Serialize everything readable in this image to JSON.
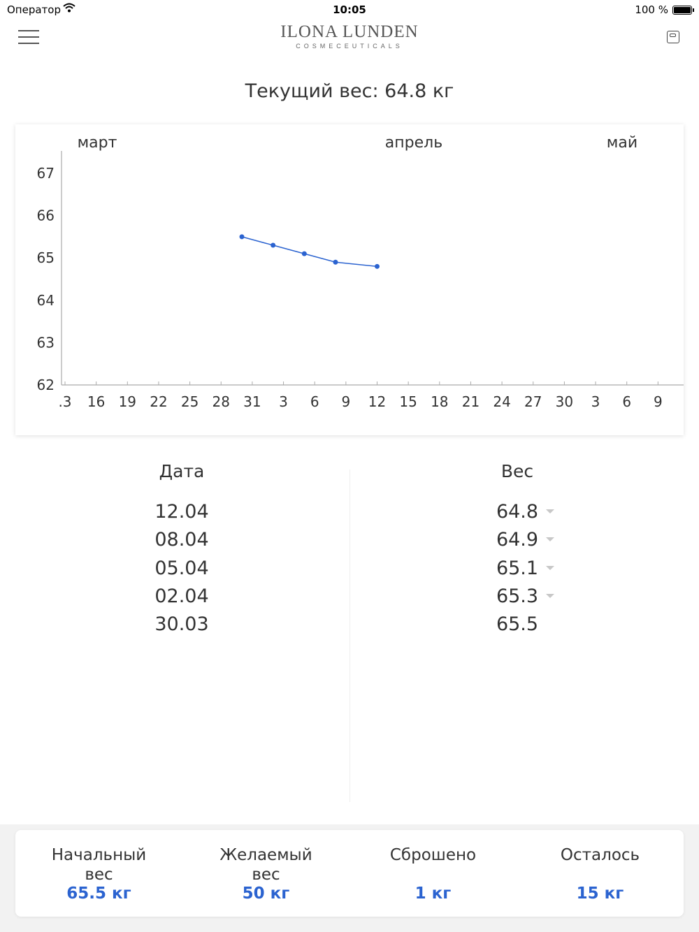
{
  "status_bar": {
    "carrier": "Оператор",
    "time": "10:05",
    "battery": "100 %"
  },
  "header": {
    "brand": "ILONA LUNDEN",
    "brand_sub": "COSMECEUTICALS"
  },
  "current_weight": "Текущий вес: 64.8 кг",
  "chart_data": {
    "type": "line",
    "months": [
      "март",
      "апрель",
      "май"
    ],
    "x_tick_labels": [
      ".3",
      "16",
      "19",
      "22",
      "25",
      "28",
      "31",
      "3",
      "6",
      "9",
      "12",
      "15",
      "18",
      "21",
      "24",
      "27",
      "30",
      "3",
      "6",
      "9"
    ],
    "y_ticks": [
      62,
      63,
      64,
      65,
      66,
      67
    ],
    "ylim": [
      62,
      67.5
    ],
    "series": [
      {
        "points": [
          {
            "date": "30.03",
            "value": 65.5
          },
          {
            "date": "02.04",
            "value": 65.3
          },
          {
            "date": "05.04",
            "value": 65.1
          },
          {
            "date": "08.04",
            "value": 64.9
          },
          {
            "date": "12.04",
            "value": 64.8
          }
        ]
      }
    ],
    "line_color": "#2b63d0",
    "grid": false
  },
  "table": {
    "date_header": "Дата",
    "weight_header": "Вес",
    "rows": [
      {
        "date": "12.04",
        "weight": "64.8",
        "down": true
      },
      {
        "date": "08.04",
        "weight": "64.9",
        "down": true
      },
      {
        "date": "05.04",
        "weight": "65.1",
        "down": true
      },
      {
        "date": "02.04",
        "weight": "65.3",
        "down": true
      },
      {
        "date": "30.03",
        "weight": "65.5",
        "down": false
      }
    ]
  },
  "summary": {
    "start": {
      "label1": "Начальный",
      "label2": "вес",
      "value": "65.5 кг"
    },
    "target": {
      "label1": "Желаемый",
      "label2": "вес",
      "value": "50 кг"
    },
    "lost": {
      "label1": "Сброшено",
      "label2": "",
      "value": "1 кг"
    },
    "left": {
      "label1": "Осталось",
      "label2": "",
      "value": "15 кг"
    }
  },
  "colors": {
    "accent": "#2b63d0"
  }
}
